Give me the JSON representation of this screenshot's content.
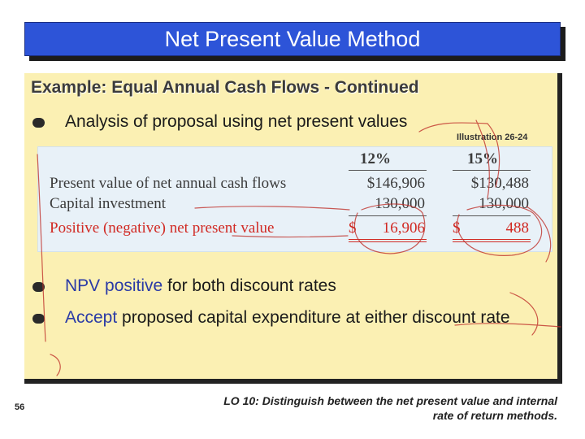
{
  "title": "Net Present Value Method",
  "subtitle": "Example: Equal Annual Cash Flows - Continued",
  "bullets": [
    {
      "text": "Analysis of proposal using net present values"
    },
    {
      "lead": "NPV positive",
      "rest": " for both discount rates"
    },
    {
      "lead": "Accept",
      "rest": " proposed capital expenditure at either discount rate"
    }
  ],
  "illustration_label": "Illustration 26-24",
  "table": {
    "columns": [
      "12%",
      "15%"
    ],
    "rows": [
      {
        "label": "Present value of net annual cash flows",
        "col1": "$146,906",
        "col2": "$130,488"
      },
      {
        "label": "Capital investment",
        "col1": "130,000",
        "col2": "130,000"
      },
      {
        "label": "Positive (negative) net present value",
        "dollar": "$",
        "col1": "16,906",
        "col2": "488"
      }
    ]
  },
  "slide_number": "56",
  "learning_objective": "LO 10:  Distinguish between the net present value and internal rate of return methods.",
  "colors": {
    "title_bar": "#2d54d8",
    "panel": "#fbf0b3",
    "negative_row": "#d12a24",
    "annotation_ink": "#c0322c"
  }
}
